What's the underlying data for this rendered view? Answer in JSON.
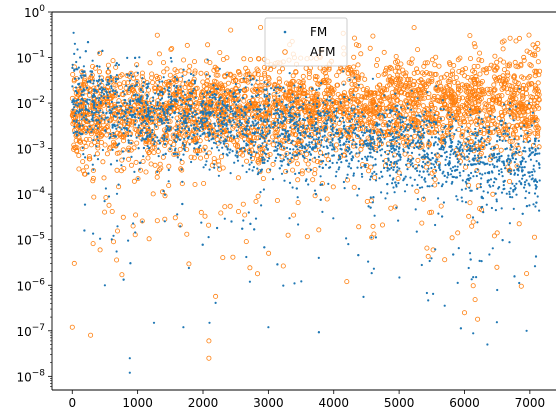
{
  "chart_data": {
    "type": "scatter",
    "title": "",
    "xlabel": "",
    "ylabel": "",
    "xlim": [
      -310,
      7400
    ],
    "ylim_log10": [
      -8.3,
      0
    ],
    "y_scale": "log",
    "grid": false,
    "legend_placement": "top-center",
    "x_ticks": [
      0,
      1000,
      2000,
      3000,
      4000,
      5000,
      6000,
      7000
    ],
    "y_ticks": [
      {
        "exp": 0,
        "label": "10",
        "sup": "0"
      },
      {
        "exp": -1,
        "label": "10",
        "sup": "−1"
      },
      {
        "exp": -2,
        "label": "10",
        "sup": "−2"
      },
      {
        "exp": -3,
        "label": "10",
        "sup": "−3"
      },
      {
        "exp": -4,
        "label": "10",
        "sup": "−4"
      },
      {
        "exp": -5,
        "label": "10",
        "sup": "−5"
      },
      {
        "exp": -6,
        "label": "10",
        "sup": "−6"
      },
      {
        "exp": -7,
        "label": "10",
        "sup": "−7"
      },
      {
        "exp": -8,
        "label": "10",
        "sup": "−8"
      }
    ],
    "series": [
      {
        "name": "FM",
        "color": "#1f77b4",
        "marker": "dot",
        "x_range": [
          0,
          7150
        ],
        "points": [
          [
            20,
            0.35
          ],
          [
            30,
            0.12
          ],
          [
            40,
            0.2
          ],
          [
            60,
            0.08
          ],
          [
            80,
            0.15
          ],
          [
            100,
            0.06
          ],
          [
            120,
            0.1
          ],
          [
            150,
            0.05
          ],
          [
            200,
            0.04
          ],
          [
            250,
            0.03
          ],
          [
            300,
            0.05
          ],
          [
            400,
            0.03
          ],
          [
            500,
            0.02
          ],
          [
            600,
            0.03
          ],
          [
            800,
            0.01
          ],
          [
            1000,
            0.015
          ],
          [
            1200,
            0.01
          ],
          [
            1500,
            0.008
          ],
          [
            2000,
            0.006
          ],
          [
            2500,
            0.005
          ],
          [
            3000,
            0.004
          ],
          [
            3500,
            0.003
          ],
          [
            4000,
            0.002
          ],
          [
            4500,
            0.0015
          ],
          [
            5000,
            0.001
          ],
          [
            5500,
            0.0008
          ],
          [
            6000,
            0.0006
          ],
          [
            6500,
            0.0004
          ],
          [
            7000,
            0.0003
          ],
          [
            7150,
            0.0002
          ],
          [
            880,
            1.2e-08
          ],
          [
            880,
            2.5e-08
          ],
          [
            1250,
            1.5e-07
          ],
          [
            1700,
            1.2e-07
          ],
          [
            2100,
            1.5e-07
          ],
          [
            3000,
            1.2e-07
          ],
          [
            6350,
            5e-08
          ],
          [
            6950,
            1e-07
          ],
          [
            500,
            1e-06
          ],
          [
            3400,
            1.1e-06
          ]
        ],
        "trend": {
          "decades_at_start": -2.0,
          "decades_at_end": -3.4,
          "spread_decades": 0.5
        },
        "count_approx": 3000
      },
      {
        "name": "AFM",
        "color": "#ff7f0e",
        "marker": "open-circle",
        "x_range": [
          0,
          7150
        ],
        "points": [
          [
            100,
            0.02
          ],
          [
            300,
            0.03
          ],
          [
            500,
            0.02
          ],
          [
            1000,
            0.015
          ],
          [
            2000,
            0.01
          ],
          [
            2800,
            0.02
          ],
          [
            3500,
            0.01
          ],
          [
            4000,
            0.01
          ],
          [
            5000,
            0.02
          ],
          [
            5500,
            0.03
          ],
          [
            6000,
            0.04
          ],
          [
            6500,
            0.06
          ],
          [
            7000,
            0.07
          ],
          [
            7100,
            0.05
          ],
          [
            0,
            1.2e-07
          ],
          [
            280,
            8e-08
          ],
          [
            2090,
            2.5e-08
          ],
          [
            2090,
            6e-08
          ],
          [
            6000,
            2.5e-07
          ],
          [
            6200,
            1.8e-07
          ],
          [
            4200,
            1.2e-06
          ],
          [
            6950,
            1.8e-06
          ]
        ],
        "trend": {
          "decades_at_start": -2.3,
          "decades_at_end": -2.0,
          "spread_decades": 0.55
        },
        "count_approx": 3000
      }
    ]
  }
}
